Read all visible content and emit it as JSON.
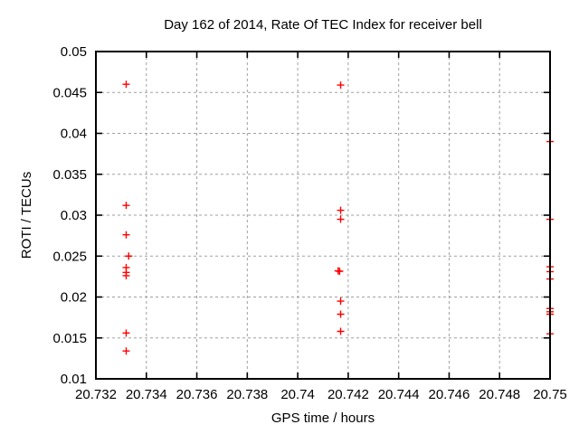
{
  "window": {
    "background": "#ffffff"
  },
  "chart_data": {
    "type": "scatter",
    "title": "Day 162 of 2014, Rate Of TEC Index for receiver bell",
    "xlabel": "GPS time / hours",
    "ylabel": "ROTI / TECUs",
    "xlim": [
      20.732,
      20.75
    ],
    "ylim": [
      0.01,
      0.05
    ],
    "xtick_values": [
      20.732,
      20.734,
      20.736,
      20.738,
      20.74,
      20.742,
      20.744,
      20.746,
      20.748,
      20.75
    ],
    "xtick_labels": [
      "20.732",
      "20.734",
      "20.736",
      "20.738",
      "20.74",
      "20.742",
      "20.744",
      "20.746",
      "20.748",
      "20.75"
    ],
    "ytick_values": [
      0.01,
      0.015,
      0.02,
      0.025,
      0.03,
      0.035,
      0.04,
      0.045,
      0.05
    ],
    "ytick_labels": [
      "0.01",
      "0.015",
      "0.02",
      "0.025",
      "0.03",
      "0.035",
      "0.04",
      "0.045",
      "0.05"
    ],
    "grid": true,
    "legend": "none",
    "marker": {
      "shape": "plus",
      "name": "plus-marker-icon",
      "color": "#ff0000",
      "size": 8
    },
    "colors": {
      "marker": "#ff0000",
      "border": "#000000",
      "grid": "#a0a0a0",
      "text": "#000000",
      "background": "#ffffff"
    },
    "series": [
      {
        "name": "ROTI",
        "points": [
          [
            20.7332,
            0.046
          ],
          [
            20.7332,
            0.0312
          ],
          [
            20.7332,
            0.0276
          ],
          [
            20.7333,
            0.025
          ],
          [
            20.7332,
            0.0236
          ],
          [
            20.7332,
            0.023
          ],
          [
            20.7332,
            0.0226
          ],
          [
            20.7332,
            0.0156
          ],
          [
            20.7332,
            0.0134
          ],
          [
            20.7417,
            0.0459
          ],
          [
            20.7417,
            0.0306
          ],
          [
            20.7417,
            0.0295
          ],
          [
            20.7416,
            0.0232
          ],
          [
            20.74166,
            0.02315
          ],
          [
            20.7417,
            0.0195
          ],
          [
            20.7417,
            0.0179
          ],
          [
            20.7417,
            0.0158
          ],
          [
            20.75,
            0.039
          ],
          [
            20.75,
            0.0295
          ],
          [
            20.75,
            0.0237
          ],
          [
            20.75,
            0.0231
          ],
          [
            20.75,
            0.0222
          ],
          [
            20.75,
            0.0186
          ],
          [
            20.75,
            0.0182
          ],
          [
            20.75,
            0.0179
          ],
          [
            20.75,
            0.0155
          ]
        ]
      }
    ]
  }
}
